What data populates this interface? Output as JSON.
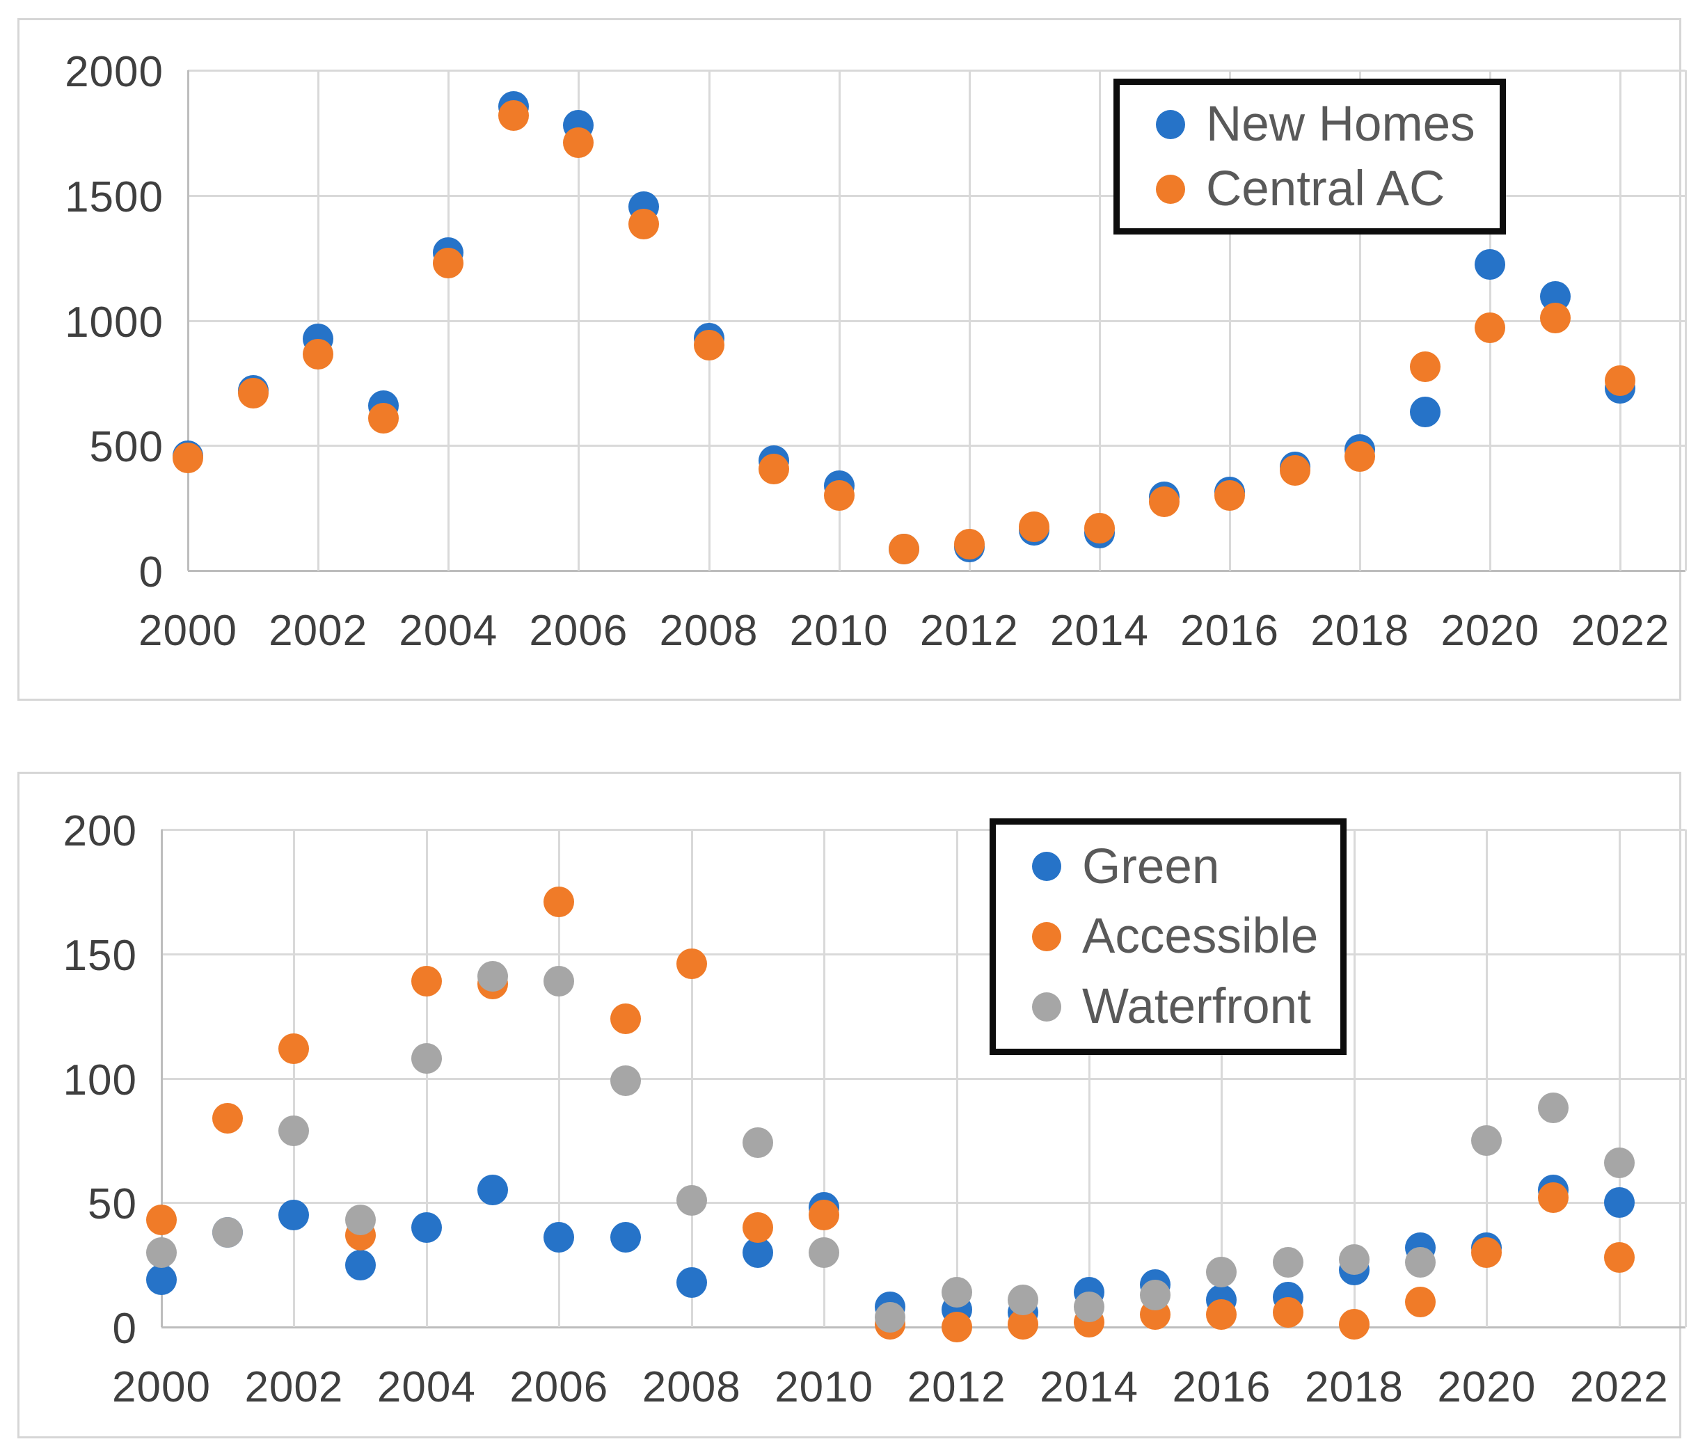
{
  "colors": {
    "blue": "#2673c8",
    "orange": "#f07b28",
    "gray": "#a6a6a6",
    "gridline": "#d9d9d9",
    "axis_line": "#bdbdbd",
    "axis_text": "#3f3f3f",
    "legend_text": "#595959",
    "legend_border": "#0d0d0d",
    "card_border": "#d6d6d6"
  },
  "chart_data": [
    {
      "type": "scatter",
      "title": "",
      "xlabel": "",
      "ylabel": "",
      "x": [
        2000,
        2001,
        2002,
        2003,
        2004,
        2005,
        2006,
        2007,
        2008,
        2009,
        2010,
        2011,
        2012,
        2013,
        2014,
        2015,
        2016,
        2017,
        2018,
        2019,
        2020,
        2021,
        2022
      ],
      "series": [
        {
          "name": "New Homes",
          "color_key": "blue",
          "values": [
            460,
            720,
            925,
            660,
            1270,
            1855,
            1780,
            1455,
            930,
            440,
            340,
            85,
            95,
            160,
            150,
            295,
            315,
            415,
            485,
            635,
            1225,
            1095,
            730
          ]
        },
        {
          "name": "Central AC",
          "color_key": "orange",
          "values": [
            450,
            710,
            865,
            610,
            1230,
            1820,
            1710,
            1385,
            900,
            405,
            300,
            85,
            105,
            175,
            170,
            275,
            300,
            400,
            455,
            815,
            970,
            1010,
            760
          ]
        }
      ],
      "xlim": [
        2000,
        2023
      ],
      "ylim": [
        0,
        2000
      ],
      "grid": true,
      "legend_position": "top-right",
      "y_ticks": [
        2000,
        1500,
        1000,
        500,
        0
      ],
      "y_tick_labels": [
        "2000",
        "1500",
        "1000",
        "500",
        "0"
      ],
      "x_ticks": [
        2000,
        2002,
        2004,
        2006,
        2008,
        2010,
        2012,
        2014,
        2016,
        2018,
        2020,
        2022
      ],
      "x_tick_labels": [
        "2000",
        "2002",
        "2004",
        "2006",
        "2008",
        "2010",
        "2012",
        "2014",
        "2016",
        "2018",
        "2020",
        "2022"
      ]
    },
    {
      "type": "scatter",
      "title": "",
      "xlabel": "",
      "ylabel": "",
      "x": [
        2000,
        2001,
        2002,
        2003,
        2004,
        2005,
        2006,
        2007,
        2008,
        2009,
        2010,
        2011,
        2012,
        2013,
        2014,
        2015,
        2016,
        2017,
        2018,
        2019,
        2020,
        2021,
        2022
      ],
      "series": [
        {
          "name": "Green",
          "color_key": "blue",
          "values": [
            19,
            38,
            45,
            25,
            40,
            55,
            36,
            36,
            18,
            30,
            48,
            8,
            7,
            6,
            14,
            17,
            11,
            12,
            23,
            32,
            32,
            55,
            50
          ]
        },
        {
          "name": "Accessible",
          "color_key": "orange",
          "values": [
            43,
            84,
            112,
            37,
            139,
            138,
            171,
            124,
            146,
            40,
            45,
            1,
            0,
            1,
            2,
            5,
            5,
            6,
            1,
            10,
            30,
            52,
            28
          ]
        },
        {
          "name": "Waterfront",
          "color_key": "gray",
          "values": [
            30,
            38,
            79,
            43,
            108,
            141,
            139,
            99,
            51,
            74,
            30,
            4,
            14,
            11,
            8,
            13,
            22,
            26,
            27,
            26,
            75,
            88,
            66
          ]
        }
      ],
      "xlim": [
        2000,
        2023
      ],
      "ylim": [
        0,
        200
      ],
      "grid": true,
      "legend_position": "top-right",
      "y_ticks": [
        200,
        150,
        100,
        50,
        0
      ],
      "y_tick_labels": [
        "200",
        "150",
        "100",
        "50",
        "0"
      ],
      "x_ticks": [
        2000,
        2002,
        2004,
        2006,
        2008,
        2010,
        2012,
        2014,
        2016,
        2018,
        2020,
        2022
      ],
      "x_tick_labels": [
        "2000",
        "2002",
        "2004",
        "2006",
        "2008",
        "2010",
        "2012",
        "2014",
        "2016",
        "2018",
        "2020",
        "2022"
      ]
    }
  ]
}
